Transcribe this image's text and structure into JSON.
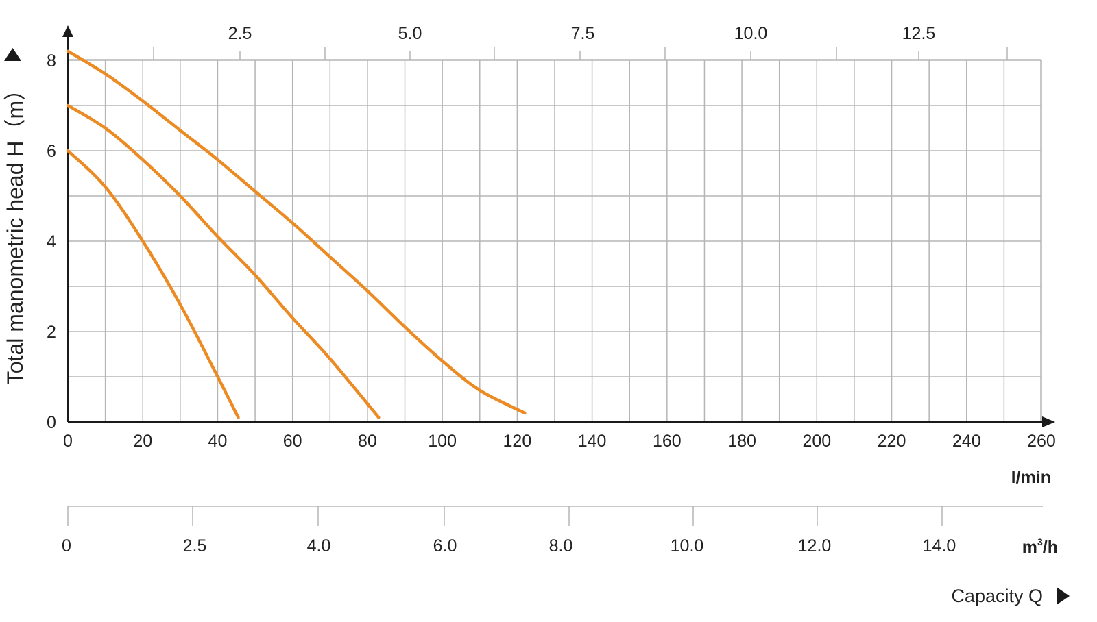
{
  "chart_data": {
    "type": "line",
    "ylabel": "Total manometric head H（m）",
    "xlabel": "Capacity Q",
    "x_unit": "l/min",
    "x2_unit_base": "m",
    "x2_unit_exp": "3",
    "x2_unit_tail": "/h",
    "x_ticks": [
      "0",
      "20",
      "40",
      "60",
      "80",
      "100",
      "120",
      "140",
      "160",
      "180",
      "200",
      "220",
      "240",
      "260"
    ],
    "y_ticks": [
      "0",
      "2",
      "4",
      "6",
      "8"
    ],
    "top_ticks": [
      "2.5",
      "5.0",
      "7.5",
      "10.0",
      "12.5"
    ],
    "bottom_ticks": [
      "0",
      "2.5",
      "4.0",
      "6.0",
      "8.0",
      "10.0",
      "12.0",
      "14.0"
    ],
    "xlim": [
      0,
      260
    ],
    "ylim": [
      0,
      8
    ],
    "grid": true,
    "colors": {
      "series": "#ec8a23",
      "grid": "#b5b5b5",
      "axis": "#1a1a1a"
    },
    "series": [
      {
        "x": [
          0,
          10,
          20,
          30,
          40,
          45.5
        ],
        "y": [
          6.0,
          5.2,
          4.0,
          2.6,
          1.0,
          0.1
        ]
      },
      {
        "x": [
          0,
          10,
          20,
          30,
          40,
          50,
          60,
          70,
          83
        ],
        "y": [
          7.0,
          6.5,
          5.8,
          5.0,
          4.1,
          3.25,
          2.3,
          1.4,
          0.1
        ]
      },
      {
        "x": [
          0,
          10,
          20,
          30,
          40,
          50,
          60,
          70,
          80,
          90,
          100,
          110,
          122
        ],
        "y": [
          8.2,
          7.7,
          7.1,
          6.45,
          5.8,
          5.1,
          4.4,
          3.65,
          2.9,
          2.1,
          1.35,
          0.7,
          0.2
        ]
      }
    ]
  }
}
